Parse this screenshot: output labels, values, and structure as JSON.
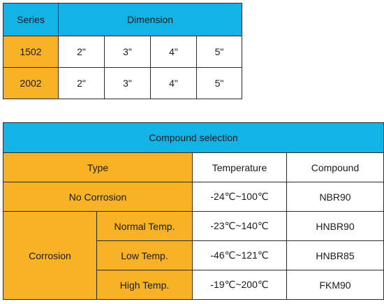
{
  "series_table": {
    "header": {
      "series": "Series",
      "dimension": "Dimension"
    },
    "rows": [
      {
        "series": "1502",
        "sizes": [
          "2\"",
          "3\"",
          "4\"",
          "5\""
        ]
      },
      {
        "series": "2002",
        "sizes": [
          "2\"",
          "3\"",
          "4\"",
          "5\""
        ]
      }
    ]
  },
  "compound_table": {
    "title": "Compound selection",
    "headers": {
      "type": "Type",
      "temperature": "Temperature",
      "compound": "Compound"
    },
    "no_corrosion": {
      "type": "No Corrosion",
      "temperature": "-24℃~100℃",
      "compound": "NBR90"
    },
    "corrosion": {
      "type": "Corrosion",
      "rows": [
        {
          "subtype": "Normal Temp.",
          "temperature": "-23℃~140℃",
          "compound": "HNBR90"
        },
        {
          "subtype": "Low Temp.",
          "temperature": "-46℃~121℃",
          "compound": "HNBR85"
        },
        {
          "subtype": "High Temp.",
          "temperature": "-19℃~200℃",
          "compound": "FKM90"
        }
      ]
    }
  },
  "colors": {
    "header_blue": "#12b3e5",
    "label_orange": "#f7b325",
    "border": "#2b2b2b"
  }
}
